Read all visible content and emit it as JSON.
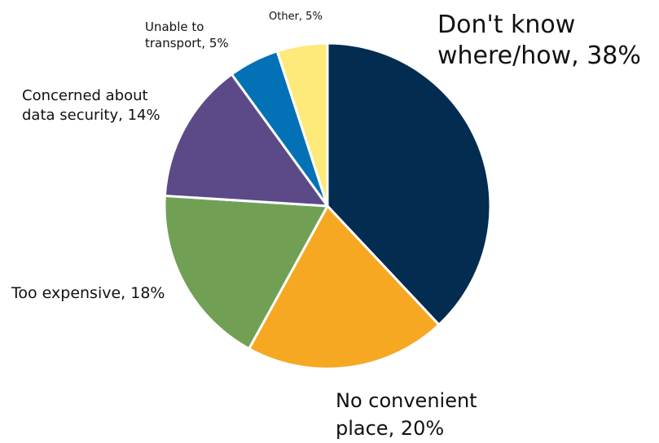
{
  "chart_data": {
    "type": "pie",
    "title": "",
    "start_angle_deg": 0,
    "direction": "clockwise",
    "slices": [
      {
        "label": "Don't know where/how, 38%",
        "lines": [
          "Don't know",
          "where/how, 38%"
        ],
        "value": 38,
        "color": "#022c50"
      },
      {
        "label": "No convenient place, 20%",
        "lines": [
          "No convenient",
          "place, 20%"
        ],
        "value": 20,
        "color": "#f7a823"
      },
      {
        "label": "Too expensive, 18%",
        "lines": [
          "Too expensive, 18%"
        ],
        "value": 18,
        "color": "#71a055"
      },
      {
        "label": "Concerned about data security, 14%",
        "lines": [
          "Concerned about",
          "data security, 14%"
        ],
        "value": 14,
        "color": "#5b4a87"
      },
      {
        "label": "Unable to transport, 5%",
        "lines": [
          "Unable to",
          "transport, 5%"
        ],
        "value": 5,
        "color": "#0271b6"
      },
      {
        "label": "Other, 5%",
        "lines": [
          "Other, 5%"
        ],
        "value": 5,
        "color": "#fdea7b"
      }
    ]
  }
}
